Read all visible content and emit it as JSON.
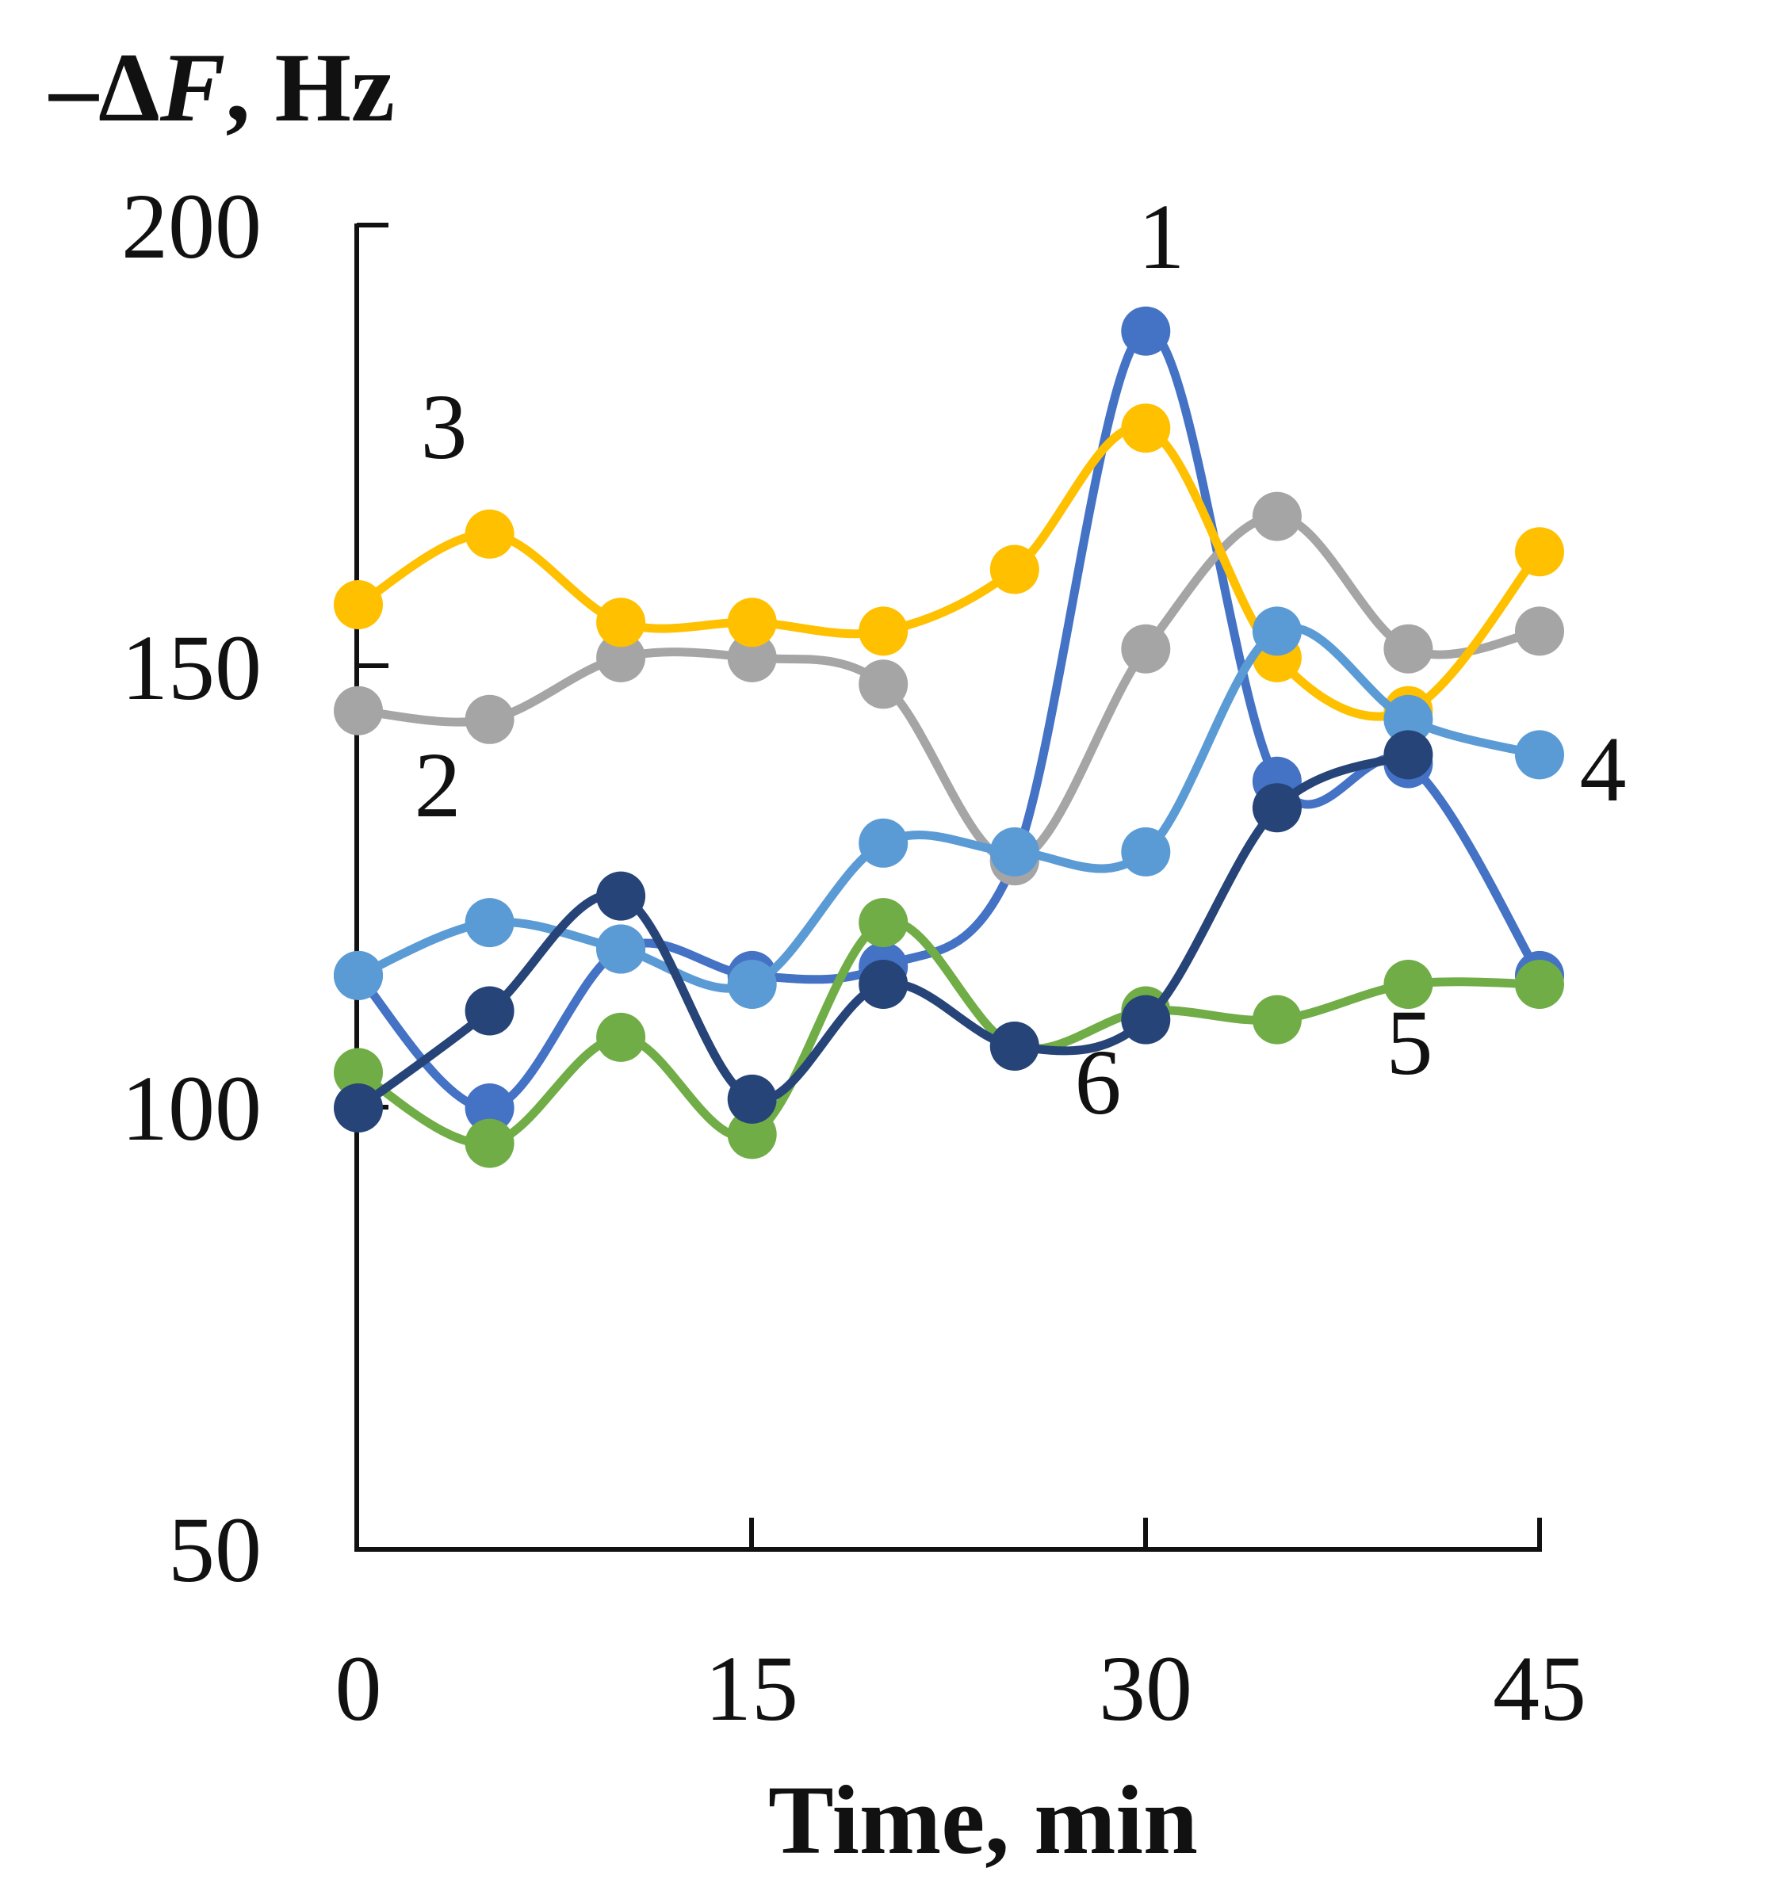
{
  "chart_data": {
    "type": "line",
    "title": "",
    "ylabel_prefix": "–Δ",
    "ylabel_var": "F",
    "ylabel_suffix": ", Hz",
    "xlabel": "Time, min",
    "xlim": [
      0,
      45
    ],
    "ylim": [
      50,
      200
    ],
    "x_ticks": [
      "0",
      "15",
      "30",
      "45"
    ],
    "y_ticks": [
      "200",
      "150",
      "100",
      "50"
    ],
    "grid": false,
    "x": [
      0,
      5,
      10,
      15,
      20,
      25,
      30,
      35,
      40,
      45
    ],
    "series": [
      {
        "name": "1",
        "color": "#4472C4",
        "values": [
          115,
          100,
          118,
          115,
          116,
          128,
          188,
          137,
          139,
          115
        ]
      },
      {
        "name": "2",
        "color": "#A5A5A5",
        "values": [
          145,
          144,
          151,
          151,
          148,
          128,
          152,
          167,
          152,
          154
        ]
      },
      {
        "name": "3",
        "color": "#FFC000",
        "values": [
          157,
          165,
          155,
          155,
          154,
          161,
          177,
          151,
          145,
          163
        ]
      },
      {
        "name": "4",
        "color": "#5B9BD5",
        "values": [
          115,
          121,
          118,
          114,
          130,
          129,
          129,
          154,
          144,
          140
        ]
      },
      {
        "name": "5",
        "color": "#70AD47",
        "values": [
          104,
          96,
          108,
          97,
          121,
          107,
          111,
          110,
          114,
          114
        ]
      },
      {
        "name": "6",
        "color": "#264478",
        "values": [
          100,
          111,
          124,
          101,
          114,
          107,
          110,
          134,
          140,
          null
        ]
      }
    ]
  }
}
